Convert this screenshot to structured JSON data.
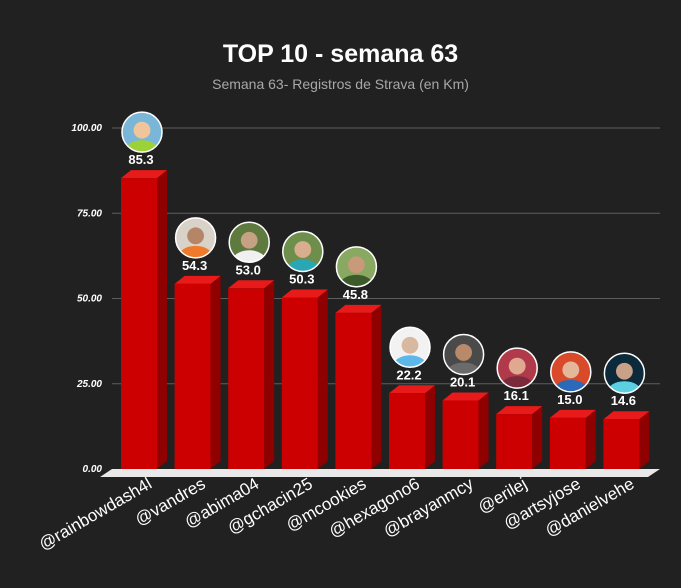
{
  "chart_data": {
    "type": "bar",
    "title": "TOP 10 - semana 63",
    "subtitle": "Semana 63- Registros de Strava (en Km)",
    "categories": [
      "@rainbowdash4l",
      "@vandres",
      "@abima04",
      "@gchacin25",
      "@mcookies",
      "@hexagono6",
      "@brayanmcy",
      "@erilej",
      "@artsyjose",
      "@danielvehe"
    ],
    "values": [
      85.3,
      54.3,
      53.0,
      50.3,
      45.8,
      22.2,
      20.1,
      16.1,
      15.0,
      14.6
    ],
    "value_labels": [
      "85.3",
      "54.3",
      "53.0",
      "50.3",
      "45.8",
      "22.2",
      "20.1",
      "16.1",
      "15.0",
      "14.6"
    ],
    "ylim": [
      0,
      100
    ],
    "yticks": [
      "0.00",
      "25.00",
      "50.00",
      "75.00",
      "100.00"
    ],
    "grid": true,
    "bar_color": "#cc0000",
    "style": "3d-columns-with-avatars"
  }
}
